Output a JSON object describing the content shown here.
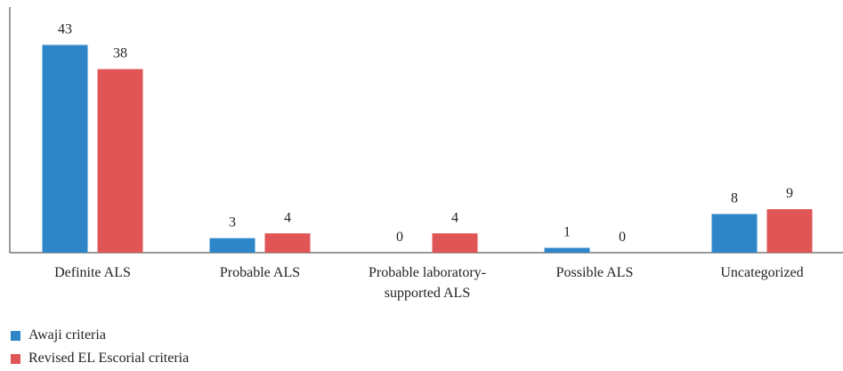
{
  "chart_data": {
    "type": "bar",
    "categories": [
      [
        "Definite ALS"
      ],
      [
        "Probable ALS"
      ],
      [
        "Probable laboratory-",
        "supported ALS"
      ],
      [
        "Possible ALS"
      ],
      [
        "Uncategorized"
      ]
    ],
    "series": [
      {
        "name": "Awaji criteria",
        "color": "#2e86c9",
        "values": [
          43,
          3,
          0,
          1,
          8
        ]
      },
      {
        "name": "Revised EL Escorial criteria",
        "color": "#e05656",
        "values": [
          38,
          4,
          4,
          0,
          9
        ]
      }
    ],
    "ylim": [
      0,
      48
    ],
    "grid": false,
    "legend_position": "bottom-left",
    "data_labels": true
  }
}
